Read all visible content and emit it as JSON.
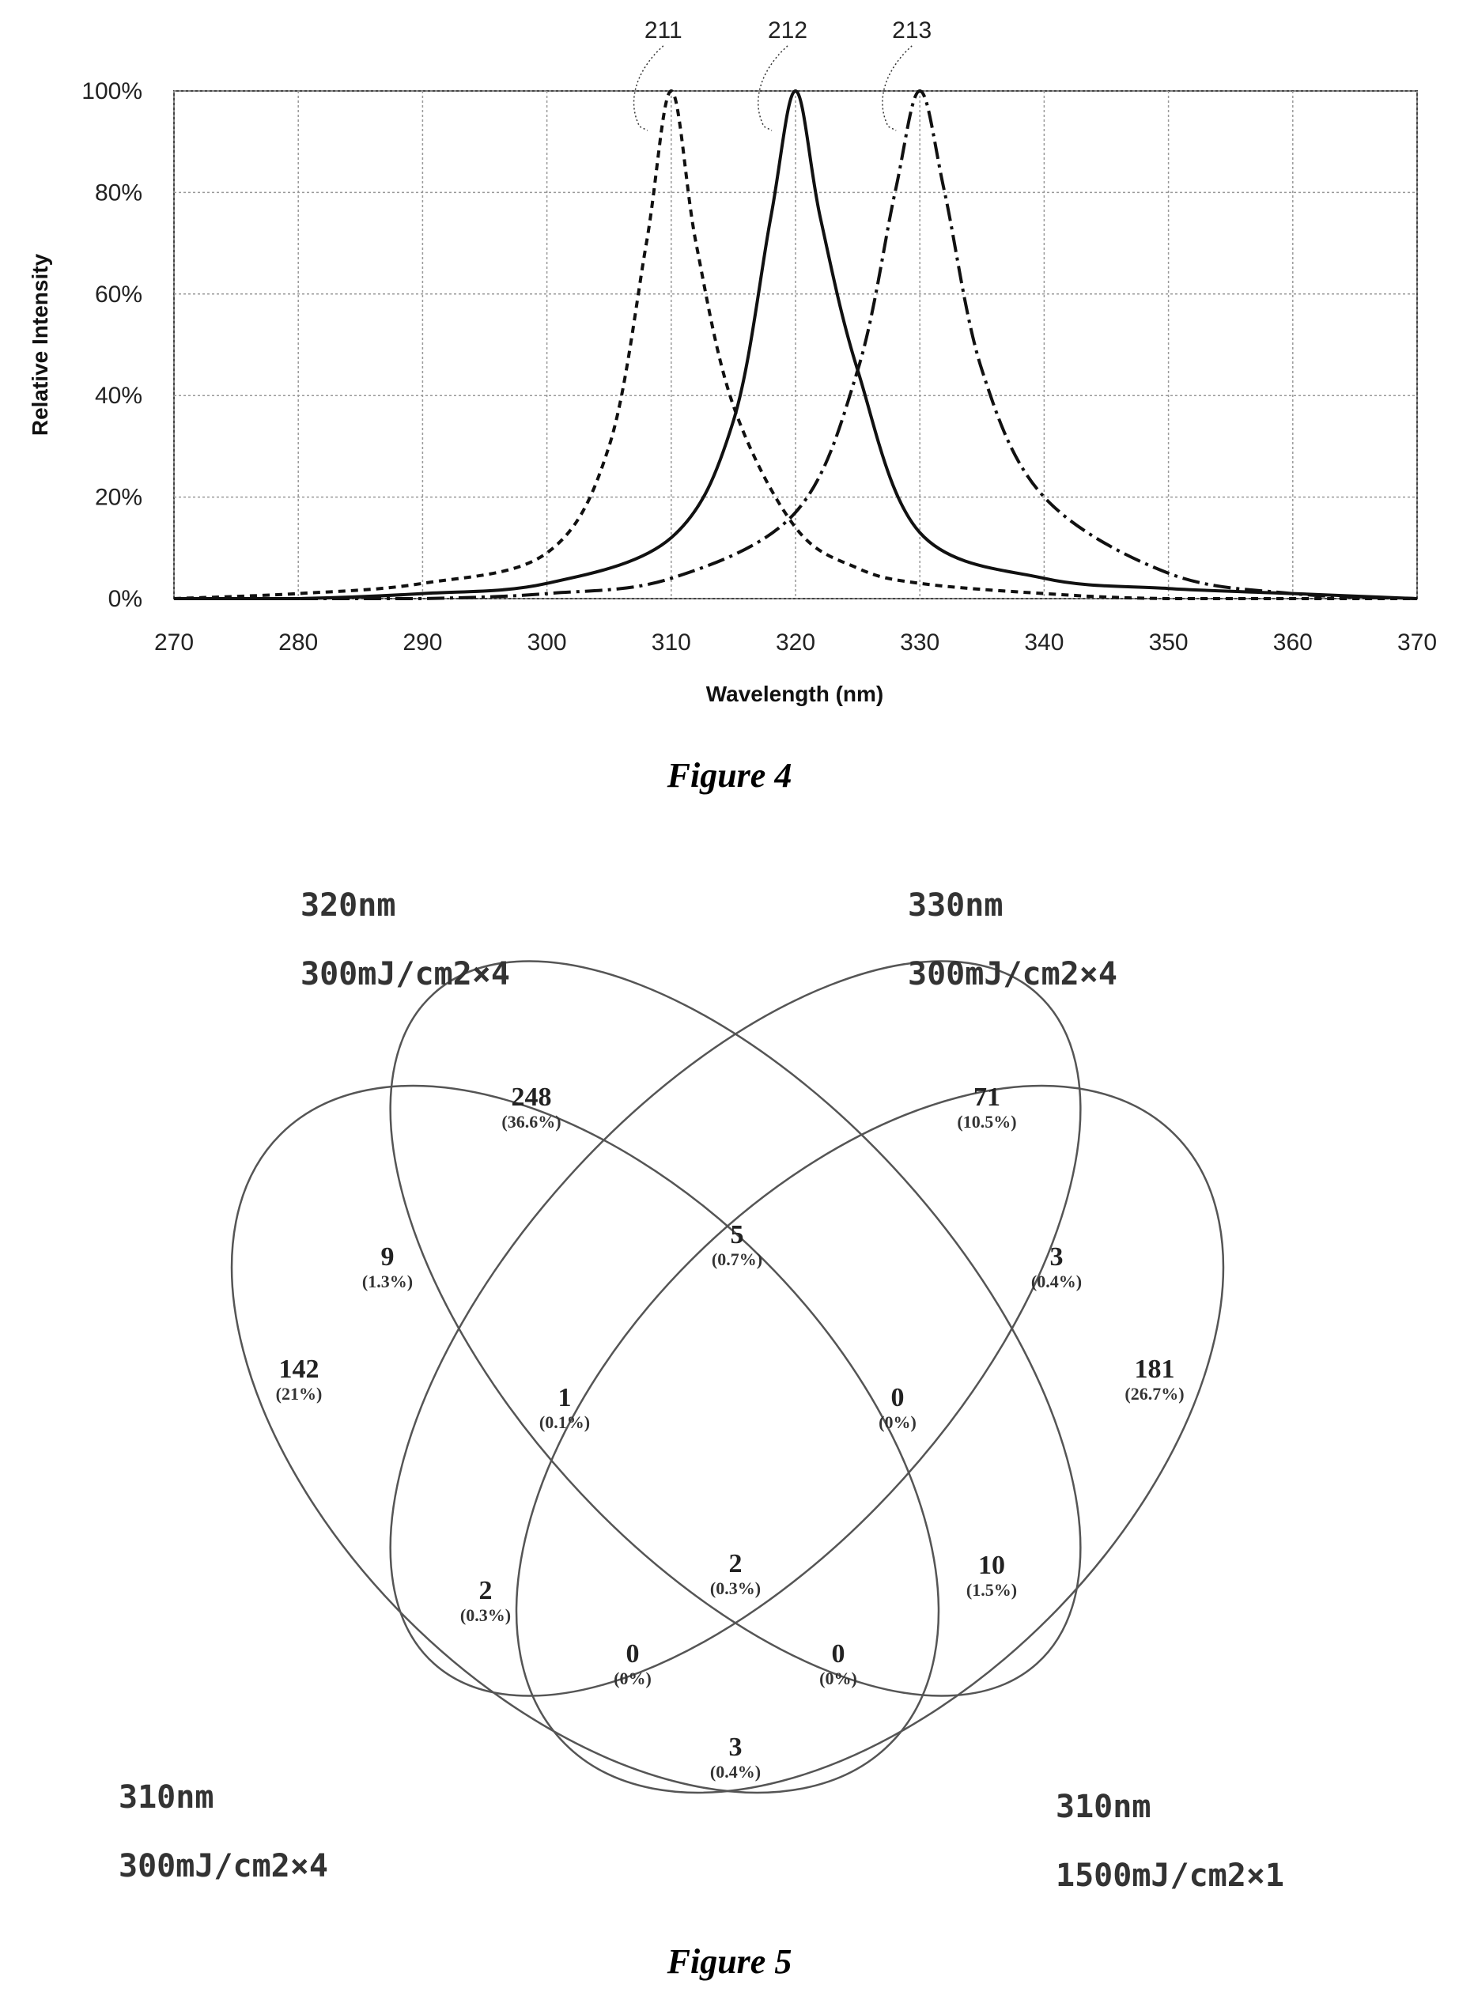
{
  "chart_data": {
    "type": "line",
    "xlabel": "Wavelength (nm)",
    "ylabel": "Relative Intensity",
    "xlim": [
      270,
      370
    ],
    "ylim": [
      0,
      100
    ],
    "x_ticks": [
      "270",
      "280",
      "290",
      "300",
      "310",
      "320",
      "330",
      "340",
      "350",
      "360",
      "370"
    ],
    "y_ticks": [
      "0%",
      "20%",
      "40%",
      "60%",
      "80%",
      "100%"
    ],
    "grid": true,
    "series": [
      {
        "name": "211",
        "peak_nm": 310,
        "peak_value": 100,
        "style": "dashed",
        "points": [
          [
            270,
            0
          ],
          [
            280,
            1
          ],
          [
            290,
            3
          ],
          [
            300,
            9
          ],
          [
            305,
            30
          ],
          [
            308,
            70
          ],
          [
            310,
            100
          ],
          [
            312,
            70
          ],
          [
            315,
            38
          ],
          [
            320,
            14
          ],
          [
            325,
            6
          ],
          [
            330,
            3
          ],
          [
            340,
            1
          ],
          [
            350,
            0
          ],
          [
            370,
            0
          ]
        ]
      },
      {
        "name": "212",
        "peak_nm": 320,
        "peak_value": 100,
        "style": "solid",
        "points": [
          [
            270,
            0
          ],
          [
            280,
            0
          ],
          [
            290,
            1
          ],
          [
            300,
            3
          ],
          [
            310,
            12
          ],
          [
            315,
            35
          ],
          [
            318,
            75
          ],
          [
            320,
            100
          ],
          [
            322,
            75
          ],
          [
            325,
            45
          ],
          [
            330,
            13
          ],
          [
            340,
            4
          ],
          [
            350,
            2
          ],
          [
            360,
            1
          ],
          [
            370,
            0
          ]
        ]
      },
      {
        "name": "213",
        "peak_nm": 330,
        "peak_value": 100,
        "style": "dash-dot",
        "points": [
          [
            270,
            0
          ],
          [
            280,
            0
          ],
          [
            290,
            0
          ],
          [
            300,
            1
          ],
          [
            310,
            4
          ],
          [
            320,
            17
          ],
          [
            325,
            45
          ],
          [
            328,
            80
          ],
          [
            330,
            100
          ],
          [
            332,
            80
          ],
          [
            335,
            45
          ],
          [
            340,
            20
          ],
          [
            350,
            5
          ],
          [
            360,
            1
          ],
          [
            370,
            0
          ]
        ]
      }
    ]
  },
  "captions": {
    "figure4": "Figure 4",
    "figure5": "Figure 5"
  },
  "venn": {
    "sets": [
      {
        "line1": "320nm",
        "line2": "300mJ/cm2×4"
      },
      {
        "line1": "330nm",
        "line2": "300mJ/cm2×4"
      },
      {
        "line1": "310nm",
        "line2": "300mJ/cm2×4"
      },
      {
        "line1": "310nm",
        "line2": "1500mJ/cm2×1"
      }
    ],
    "regions": [
      {
        "count": "248",
        "pct": "(36.6%)"
      },
      {
        "count": "71",
        "pct": "(10.5%)"
      },
      {
        "count": "9",
        "pct": "(1.3%)"
      },
      {
        "count": "5",
        "pct": "(0.7%)"
      },
      {
        "count": "3",
        "pct": "(0.4%)"
      },
      {
        "count": "142",
        "pct": "(21%)"
      },
      {
        "count": "1",
        "pct": "(0.1%)"
      },
      {
        "count": "0",
        "pct": "(0%)"
      },
      {
        "count": "181",
        "pct": "(26.7%)"
      },
      {
        "count": "2",
        "pct": "(0.3%)"
      },
      {
        "count": "2",
        "pct": "(0.3%)"
      },
      {
        "count": "10",
        "pct": "(1.5%)"
      },
      {
        "count": "0",
        "pct": "(0%)"
      },
      {
        "count": "0",
        "pct": "(0%)"
      },
      {
        "count": "3",
        "pct": "(0.4%)"
      }
    ]
  }
}
